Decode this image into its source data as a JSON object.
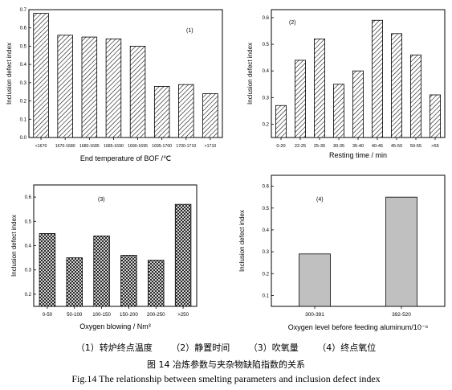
{
  "chart_data": [
    {
      "type": "bar",
      "panel_label": "(1)",
      "categories": [
        "<1670",
        "1670-1680",
        "1680-1685",
        "1685-1690",
        "1690-1695",
        "1695-1700",
        "1700-1710",
        ">1710"
      ],
      "values": [
        0.68,
        0.56,
        0.55,
        0.54,
        0.5,
        0.28,
        0.29,
        0.24
      ],
      "xlabel": "End temperature of BOF /℃",
      "ylabel": "Inclusion defect index",
      "ylim": [
        0.0,
        0.7
      ],
      "yticks": [
        "0.0",
        "0.1",
        "0.2",
        "0.3",
        "0.4",
        "0.5",
        "0.6",
        "0.7"
      ],
      "fill": "diagonal-hatch"
    },
    {
      "type": "bar",
      "panel_label": "(2)",
      "categories": [
        "0-20",
        "22-25",
        "25-30",
        "30-35",
        "35-40",
        "40-45",
        "45-50",
        "50-55",
        ">55"
      ],
      "values": [
        0.27,
        0.44,
        0.52,
        0.35,
        0.4,
        0.59,
        0.54,
        0.46,
        0.31
      ],
      "xlabel": "Resting time / min",
      "ylabel": "Inclusion defect index",
      "ylim": [
        0.15,
        0.63
      ],
      "yticks": [
        "0.2",
        "0.3",
        "0.4",
        "0.5",
        "0.6"
      ],
      "fill": "diagonal-hatch"
    },
    {
      "type": "bar",
      "panel_label": "(3)",
      "categories": [
        "0-50",
        "50-100",
        "100-150",
        "150-200",
        "200-250",
        ">250"
      ],
      "values": [
        0.45,
        0.35,
        0.44,
        0.36,
        0.34,
        0.57
      ],
      "xlabel": "Oxygen blowing / Nm³",
      "ylabel": "Inclusion defect index",
      "ylim": [
        0.15,
        0.65
      ],
      "yticks": [
        "0.2",
        "0.3",
        "0.4",
        "0.5",
        "0.6"
      ],
      "fill": "cross-hatch"
    },
    {
      "type": "bar",
      "panel_label": "(4)",
      "categories": [
        "300-391",
        "392-520"
      ],
      "values": [
        0.29,
        0.55
      ],
      "xlabel": "Oxygen level before feeding aluminum/10⁻⁶",
      "ylabel": "Inclusion defect index",
      "ylim": [
        0.05,
        0.65
      ],
      "yticks": [
        "0.1",
        "0.2",
        "0.3",
        "0.4",
        "0.5",
        "0.6"
      ],
      "fill": "#c0c0c0"
    }
  ],
  "captions": {
    "legend": [
      "（1）转炉终点温度",
      "（2）静置时间",
      "（3）吹氧量",
      "（4）终点氧位"
    ],
    "title_cn": "图 14   冶炼参数与夹杂物缺陷指数的关系",
    "title_en": "Fig.14   The relationship between smelting parameters and inclusion defect index"
  }
}
